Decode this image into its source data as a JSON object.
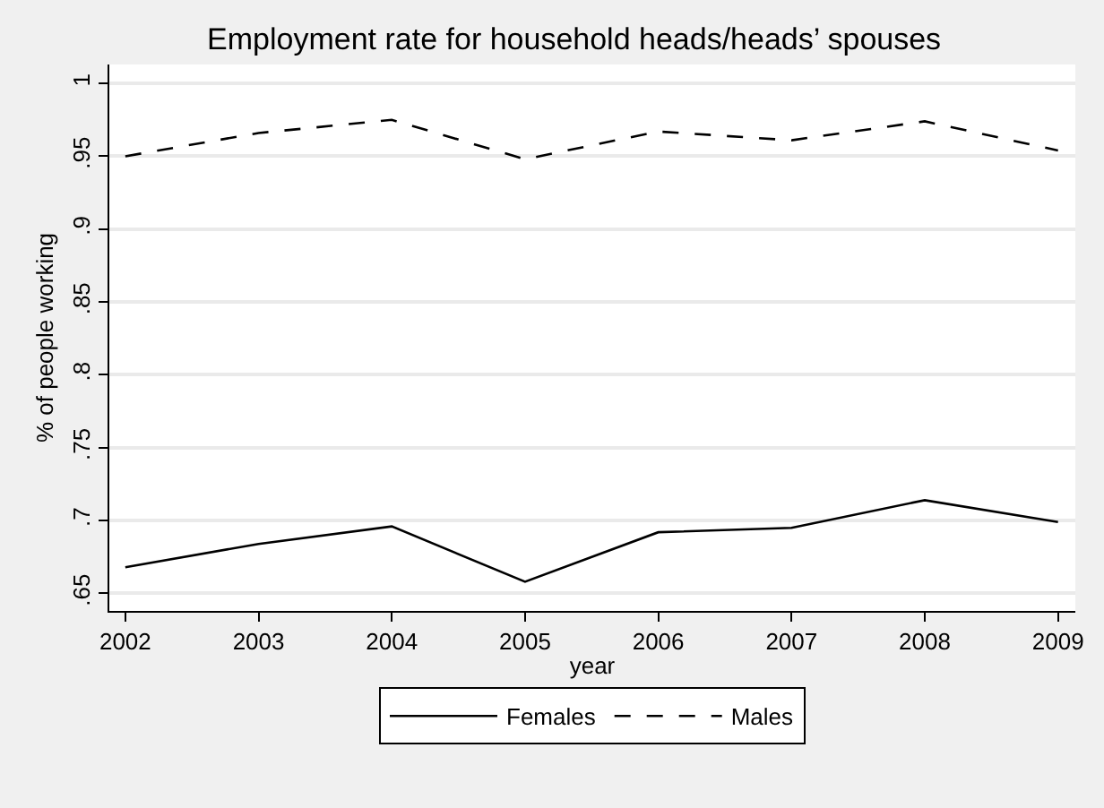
{
  "chart_data": {
    "type": "line",
    "title": "Employment rate for household heads/heads’ spouses",
    "xlabel": "year",
    "ylabel": "% of people working",
    "x": [
      2002,
      2003,
      2004,
      2005,
      2006,
      2007,
      2008,
      2009
    ],
    "series": [
      {
        "name": "Females",
        "color": "#000000",
        "line_style": "solid",
        "values": [
          0.668,
          0.684,
          0.696,
          0.658,
          0.692,
          0.695,
          0.714,
          0.699
        ]
      },
      {
        "name": "Males",
        "color": "#000000",
        "line_style": "dashed",
        "values": [
          0.95,
          0.966,
          0.975,
          0.948,
          0.967,
          0.961,
          0.974,
          0.954
        ]
      }
    ],
    "xlim": [
      2001.88,
      2009.13
    ],
    "xticks": [
      2002,
      2003,
      2004,
      2005,
      2006,
      2007,
      2008,
      2009
    ],
    "ylim": [
      0.638,
      1.013
    ],
    "yticks": [
      {
        "value": 0.65,
        "label": ".65"
      },
      {
        "value": 0.7,
        "label": ".7"
      },
      {
        "value": 0.75,
        "label": ".75"
      },
      {
        "value": 0.8,
        "label": ".8"
      },
      {
        "value": 0.85,
        "label": ".85"
      },
      {
        "value": 0.9,
        "label": ".9"
      },
      {
        "value": 0.95,
        "label": ".95"
      },
      {
        "value": 1,
        "label": "1"
      }
    ],
    "grid": "y",
    "legend": "bottom",
    "marker": "none"
  }
}
